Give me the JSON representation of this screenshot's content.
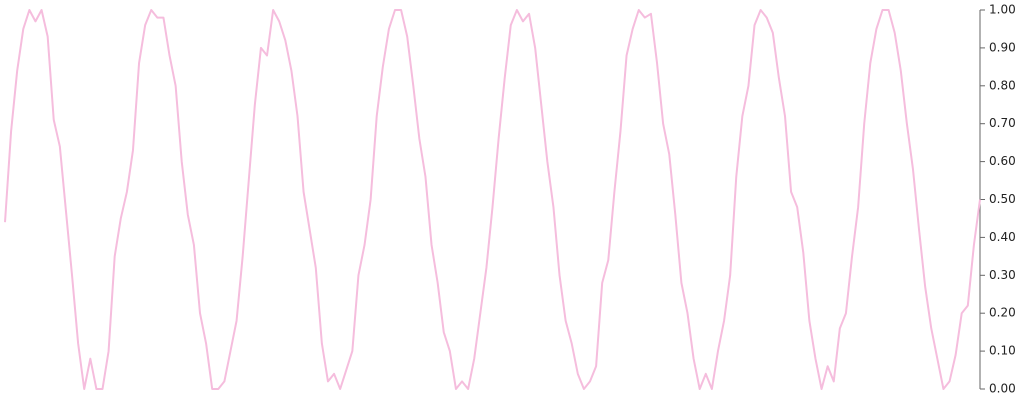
{
  "chart_data": {
    "type": "line",
    "color": "#f5bddd",
    "values": [
      0.44,
      0.68,
      0.84,
      0.95,
      1,
      0.97,
      1,
      0.93,
      0.71,
      0.64,
      0.47,
      0.3,
      0.12,
      0,
      0.08,
      0,
      0,
      0.1,
      0.35,
      0.45,
      0.52,
      0.63,
      0.86,
      0.96,
      1,
      0.98,
      0.98,
      0.88,
      0.8,
      0.6,
      0.46,
      0.38,
      0.2,
      0.12,
      0,
      0,
      0.02,
      0.1,
      0.18,
      0.35,
      0.55,
      0.75,
      0.9,
      0.88,
      1,
      0.97,
      0.92,
      0.84,
      0.72,
      0.52,
      0.42,
      0.32,
      0.12,
      0.02,
      0.04,
      0,
      0.05,
      0.1,
      0.3,
      0.38,
      0.5,
      0.72,
      0.85,
      0.95,
      1,
      1,
      0.93,
      0.8,
      0.66,
      0.56,
      0.38,
      0.28,
      0.15,
      0.1,
      0,
      0.02,
      0,
      0.08,
      0.2,
      0.32,
      0.48,
      0.66,
      0.82,
      0.96,
      1,
      0.97,
      0.99,
      0.9,
      0.75,
      0.6,
      0.48,
      0.3,
      0.18,
      0.12,
      0.04,
      0,
      0.02,
      0.06,
      0.28,
      0.34,
      0.52,
      0.68,
      0.88,
      0.95,
      1,
      0.98,
      0.99,
      0.86,
      0.7,
      0.62,
      0.46,
      0.28,
      0.2,
      0.08,
      0,
      0.04,
      0,
      0.1,
      0.18,
      0.3,
      0.56,
      0.72,
      0.8,
      0.96,
      1,
      0.98,
      0.94,
      0.82,
      0.72,
      0.52,
      0.48,
      0.36,
      0.18,
      0.08,
      0,
      0.06,
      0.02,
      0.16,
      0.2,
      0.35,
      0.48,
      0.7,
      0.86,
      0.95,
      1,
      1,
      0.94,
      0.84,
      0.7,
      0.58,
      0.42,
      0.27,
      0.16,
      0.08,
      0,
      0.02,
      0.09,
      0.2,
      0.22,
      0.38,
      0.5
    ],
    "ylim": [
      0,
      1
    ],
    "yticks": [
      {
        "value": 0,
        "label": "0.00"
      },
      {
        "value": 0.1,
        "label": "0.10"
      },
      {
        "value": 0.2,
        "label": "0.20"
      },
      {
        "value": 0.3,
        "label": "0.30"
      },
      {
        "value": 0.4,
        "label": "0.40"
      },
      {
        "value": 0.5,
        "label": "0.50"
      },
      {
        "value": 0.6,
        "label": "0.60"
      },
      {
        "value": 0.7,
        "label": "0.70"
      },
      {
        "value": 0.8,
        "label": "0.80"
      },
      {
        "value": 0.9,
        "label": "0.90"
      },
      {
        "value": 1,
        "label": "1.00"
      }
    ],
    "y_axis_side": "right"
  }
}
